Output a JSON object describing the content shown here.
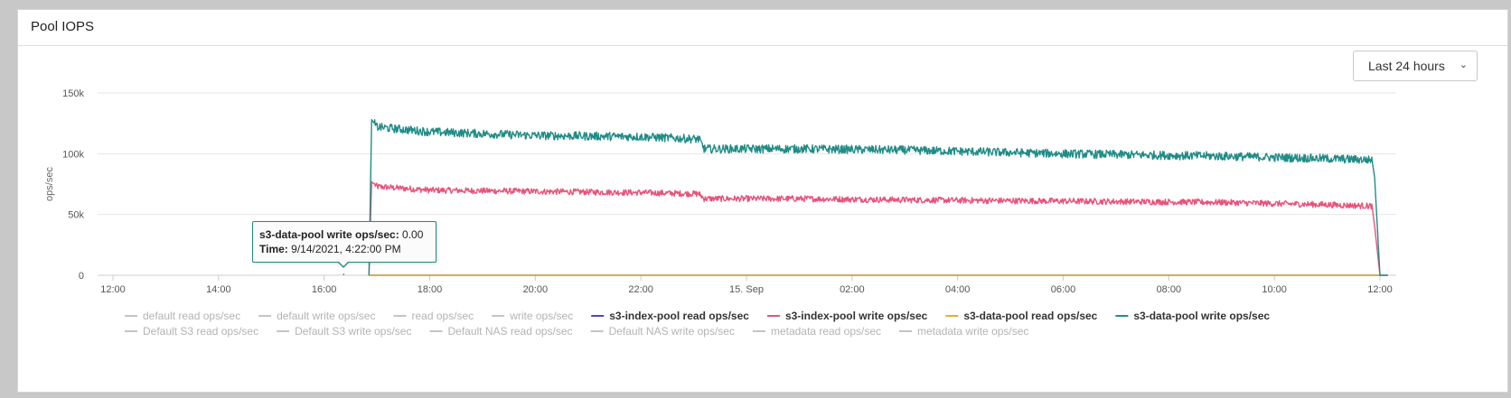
{
  "panel": {
    "title": "Pool IOPS"
  },
  "range_select": {
    "value": "Last 24 hours",
    "icon": "chevron-down-icon"
  },
  "tooltip": {
    "series": "s3-data-pool write ops/sec",
    "value": "0.00",
    "time_label": "Time:",
    "time": "9/14/2021, 4:22:00 PM"
  },
  "colors": {
    "s3_data_pool_write": "#218c87",
    "s3_index_pool_write": "#e8537a",
    "s3_data_pool_read": "#e0b12a",
    "s3_index_pool_read": "#4b4bb8",
    "disabled_legend": "#c4c4c4",
    "grid": "#e6e6e6"
  },
  "chart_data": {
    "type": "line",
    "ylabel": "ops/sec",
    "xlabel": "",
    "title": "",
    "ylim": [
      0,
      150000
    ],
    "yticks": [
      0,
      50000,
      100000,
      150000
    ],
    "ytick_labels": [
      "0",
      "50k",
      "100k",
      "150k"
    ],
    "x_range_hours": [
      -0.2,
      24.2
    ],
    "xticks_hours": [
      0,
      2,
      4,
      6,
      8,
      10,
      12,
      14,
      16,
      18,
      20,
      22,
      24
    ],
    "xtick_labels": [
      "12:00",
      "14:00",
      "16:00",
      "18:00",
      "20:00",
      "22:00",
      "15. Sep",
      "02:00",
      "04:00",
      "06:00",
      "08:00",
      "10:00",
      "12:00"
    ],
    "grid": "horizontal",
    "legend_position": "bottom",
    "series": [
      {
        "name": "s3-data-pool write ops/sec",
        "color": "#218c87",
        "noise": 3500,
        "points": [
          [
            4.85,
            0
          ],
          [
            4.9,
            128000
          ],
          [
            5.0,
            122000
          ],
          [
            6.0,
            118000
          ],
          [
            8.0,
            115000
          ],
          [
            10.0,
            114000
          ],
          [
            11.1,
            112000
          ],
          [
            11.2,
            104000
          ],
          [
            13.0,
            104000
          ],
          [
            15.0,
            103000
          ],
          [
            18.0,
            100000
          ],
          [
            21.0,
            98000
          ],
          [
            23.0,
            96000
          ],
          [
            23.8,
            95000
          ],
          [
            23.85,
            95000
          ],
          [
            23.9,
            80000
          ],
          [
            24.0,
            0
          ],
          [
            24.15,
            0
          ]
        ]
      },
      {
        "name": "s3-index-pool write ops/sec",
        "color": "#e8537a",
        "noise": 2500,
        "points": [
          [
            4.85,
            0
          ],
          [
            4.9,
            77000
          ],
          [
            5.0,
            73000
          ],
          [
            6.0,
            70000
          ],
          [
            8.0,
            69000
          ],
          [
            10.0,
            68000
          ],
          [
            11.1,
            67000
          ],
          [
            11.2,
            63000
          ],
          [
            13.0,
            63000
          ],
          [
            15.0,
            62000
          ],
          [
            18.0,
            61000
          ],
          [
            21.0,
            60000
          ],
          [
            23.0,
            58000
          ],
          [
            23.8,
            57000
          ],
          [
            23.85,
            57000
          ],
          [
            23.9,
            40000
          ],
          [
            24.0,
            0
          ],
          [
            24.15,
            0
          ]
        ]
      },
      {
        "name": "s3-data-pool read ops/sec",
        "color": "#e0b12a",
        "noise": 0,
        "points": [
          [
            4.85,
            0
          ],
          [
            24.0,
            0
          ]
        ]
      },
      {
        "name": "s3-index-pool read ops/sec",
        "color": "#4b4bb8",
        "noise": 0,
        "points": [
          [
            4.85,
            0
          ],
          [
            24.0,
            0
          ]
        ]
      }
    ],
    "legend": [
      [
        {
          "name": "default read ops/sec",
          "active": false
        },
        {
          "name": "default write ops/sec",
          "active": false
        },
        {
          "name": "read ops/sec",
          "active": false
        },
        {
          "name": "write ops/sec",
          "active": false
        },
        {
          "name": "s3-index-pool read ops/sec",
          "active": true,
          "color": "#4b4bb8"
        },
        {
          "name": "s3-index-pool write ops/sec",
          "active": true,
          "color": "#e8537a"
        },
        {
          "name": "s3-data-pool read ops/sec",
          "active": true,
          "color": "#e0b12a"
        },
        {
          "name": "s3-data-pool write ops/sec",
          "active": true,
          "color": "#218c87"
        }
      ],
      [
        {
          "name": "Default S3 read ops/sec",
          "active": false
        },
        {
          "name": "Default S3 write ops/sec",
          "active": false
        },
        {
          "name": "Default NAS read ops/sec",
          "active": false
        },
        {
          "name": "Default NAS write ops/sec",
          "active": false
        },
        {
          "name": "metadata read ops/sec",
          "active": false
        },
        {
          "name": "metadata write ops/sec",
          "active": false
        }
      ]
    ]
  }
}
